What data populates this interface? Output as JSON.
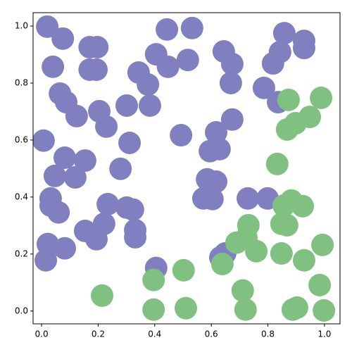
{
  "chart_data": {
    "type": "scatter",
    "xlim": [
      -0.03,
      1.055
    ],
    "ylim": [
      -0.045,
      1.047
    ],
    "xticks": [
      {
        "value": 0,
        "label": "0.0"
      },
      {
        "value": 0.2,
        "label": "0.2"
      },
      {
        "value": 0.4,
        "label": "0.4"
      },
      {
        "value": 0.6,
        "label": "0.6"
      },
      {
        "value": 0.8,
        "label": "0.8"
      },
      {
        "value": 1.0,
        "label": "1.0"
      }
    ],
    "yticks": [
      {
        "value": 0,
        "label": "0.0"
      },
      {
        "value": 0.2,
        "label": "0.2"
      },
      {
        "value": 0.4,
        "label": "0.4"
      },
      {
        "value": 0.6,
        "label": "0.6"
      },
      {
        "value": 0.8,
        "label": "0.8"
      },
      {
        "value": 1.0,
        "label": "1.0"
      }
    ],
    "series": [
      {
        "color": "#8080c0",
        "x": [
          0.02,
          0.075,
          0.04,
          0.17,
          0.197,
          0.17,
          0.194,
          0.443,
          0.532,
          0.405,
          0.447,
          0.517,
          0.343,
          0.376,
          0.383,
          0.301,
          0.644,
          0.674,
          0.669,
          0.858,
          0.928,
          0.928,
          0.843,
          0.818,
          0.786,
          0.836,
          0.065,
          0.087,
          0.124,
          0.204,
          0.229,
          0.007,
          0.082,
          0.154,
          0.047,
          0.119,
          0.279,
          0.311,
          0.493,
          0.617,
          0.674,
          0.595,
          0.629,
          0.585,
          0.617,
          0.572,
          0.604,
          0.729,
          0.799,
          0.032,
          0.032,
          0.06,
          0.234,
          0.301,
          0.323,
          0.331,
          0.331,
          0.221,
          0.154,
          0.194,
          0.022,
          0.082,
          0.015,
          0.405,
          0.632,
          0.649
        ],
        "values": [
          0.998,
          0.956,
          0.857,
          0.926,
          0.926,
          0.847,
          0.847,
          0.988,
          0.993,
          0.901,
          0.857,
          0.881,
          0.837,
          0.795,
          0.721,
          0.721,
          0.911,
          0.867,
          0.8,
          0.975,
          0.948,
          0.923,
          0.909,
          0.869,
          0.783,
          0.733,
          0.763,
          0.733,
          0.684,
          0.701,
          0.647,
          0.598,
          0.538,
          0.528,
          0.474,
          0.469,
          0.499,
          0.59,
          0.617,
          0.627,
          0.672,
          0.561,
          0.568,
          0.462,
          0.454,
          0.395,
          0.393,
          0.395,
          0.395,
          0.395,
          0.37,
          0.346,
          0.375,
          0.363,
          0.356,
          0.284,
          0.259,
          0.306,
          0.281,
          0.252,
          0.235,
          0.22,
          0.178,
          0.151,
          0.188,
          0.202
        ]
      },
      {
        "color": "#80c080",
        "x": [
          0.873,
          0.988,
          0.948,
          0.898,
          0.868,
          0.833,
          0.883,
          0.923,
          0.856,
          0.731,
          0.848,
          0.868,
          0.689,
          0.724,
          0.759,
          0.848,
          0.928,
          0.993,
          0.639,
          0.396,
          0.502,
          0.214,
          0.711,
          0.983,
          0.396,
          0.51,
          0.721,
          0.888,
          0.903,
          0.998
        ],
        "values": [
          0.741,
          0.748,
          0.681,
          0.659,
          0.637,
          0.516,
          0.388,
          0.368,
          0.37,
          0.301,
          0.306,
          0.301,
          0.24,
          0.257,
          0.21,
          0.202,
          0.178,
          0.232,
          0.165,
          0.109,
          0.143,
          0.054,
          0.072,
          0.091,
          0.005,
          0.01,
          0.005,
          0.005,
          0.012,
          0.002
        ]
      }
    ]
  }
}
